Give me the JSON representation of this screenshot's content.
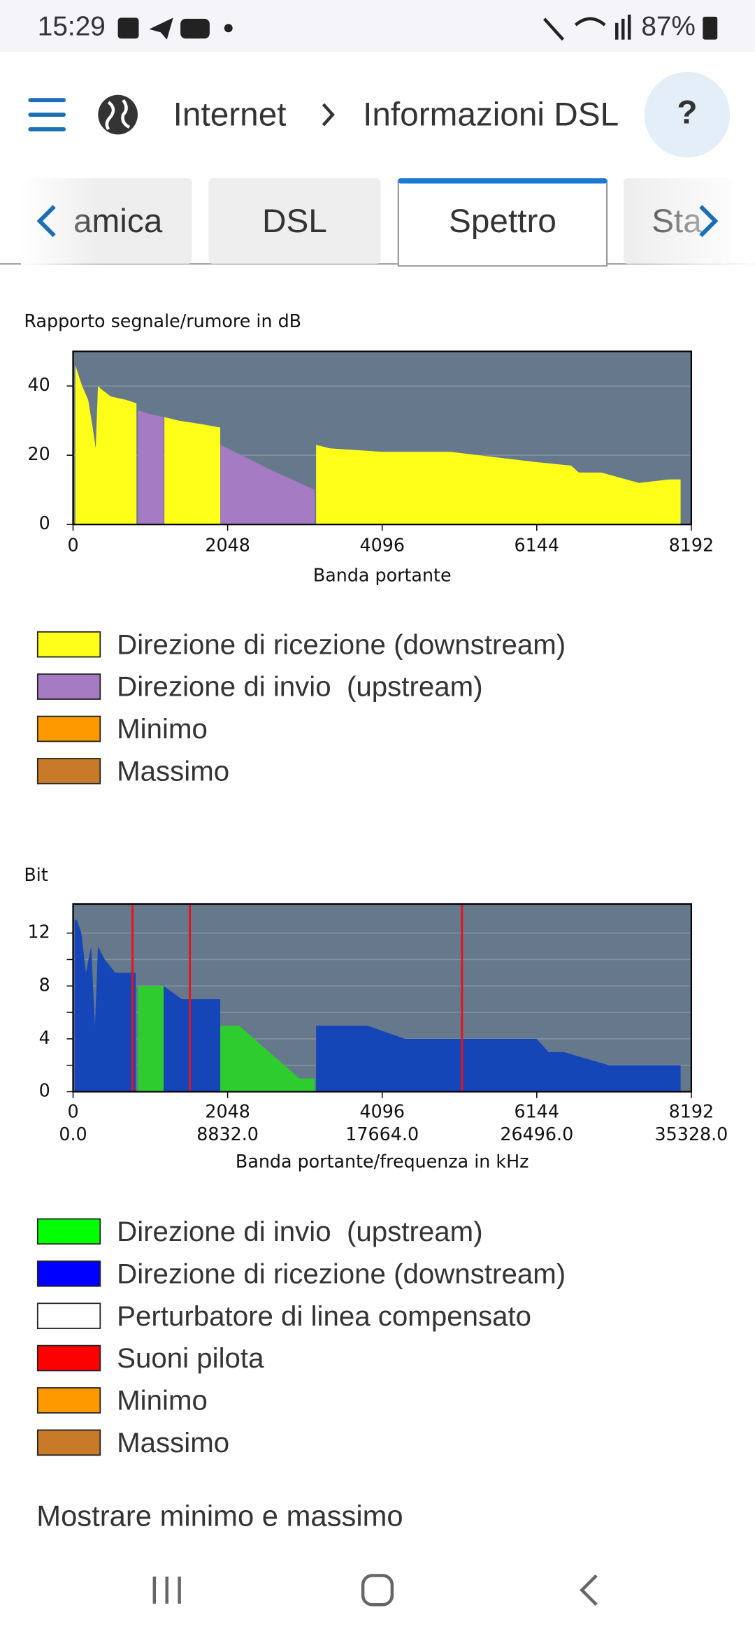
{
  "status_bar": {
    "time": "15:29",
    "battery": "87%"
  },
  "header": {
    "breadcrumb": [
      "Internet",
      "Informazioni DSL"
    ],
    "help": "?"
  },
  "tabs": [
    {
      "label": "amica"
    },
    {
      "label": "DSL"
    },
    {
      "label": "Spettro",
      "active": true
    },
    {
      "label": "Sta"
    }
  ],
  "chart_data": [
    {
      "type": "area",
      "title": "Rapporto segnale/rumore in dB",
      "xlabel": "Banda portante",
      "xlim": [
        0,
        8192
      ],
      "xticks": [
        0,
        2048,
        4096,
        6144,
        8192
      ],
      "ylim": [
        0,
        50
      ],
      "yticks": [
        0,
        20,
        40
      ],
      "grid": true,
      "background": "#66798c",
      "series": [
        {
          "name": "Direzione di ricezione (downstream)",
          "color": "#ffff1a",
          "x": [
            30,
            60,
            120,
            200,
            260,
            300,
            330,
            380,
            500,
            700,
            840,
            1000,
            1210,
            1400,
            1700,
            1950,
            2500,
            3220,
            3400,
            4096,
            5000,
            6144,
            6600,
            6700,
            7000,
            7500,
            7900,
            8050
          ],
          "values": [
            46,
            44,
            40,
            36,
            28,
            22,
            40,
            39,
            37,
            36,
            35,
            null,
            31,
            30,
            29,
            28,
            null,
            23,
            22,
            21,
            21,
            18,
            17,
            15,
            15,
            12,
            13,
            13
          ]
        },
        {
          "name": "Direzione di invio  (upstream)",
          "color": "#a57bc3",
          "x": [
            860,
            1000,
            1200,
            1300,
            1950,
            2048,
            2600,
            3200
          ],
          "values": [
            33,
            32,
            31,
            null,
            23,
            22,
            16,
            10
          ]
        },
        {
          "name": "Minimo",
          "color": "#ff9900"
        },
        {
          "name": "Massimo",
          "color": "#c87a28"
        }
      ]
    },
    {
      "type": "area",
      "title": "Bit",
      "xlabel": "Banda portante/frequenza in kHz",
      "xlim": [
        0,
        8192
      ],
      "xticks": [
        0,
        2048,
        4096,
        6144,
        8192
      ],
      "x2lim": [
        0,
        35328
      ],
      "x2ticks": [
        {
          "value": 0,
          "label": "0.0"
        },
        {
          "value": 8832,
          "label": "8832.0"
        },
        {
          "value": 17664,
          "label": "17664.0"
        },
        {
          "value": 26496,
          "label": "26496.0"
        },
        {
          "value": 35328,
          "label": "35328.0"
        }
      ],
      "ylim": [
        0,
        14.2
      ],
      "yticks": [
        0,
        4,
        8,
        12
      ],
      "minor_yticks": [
        2,
        6,
        10
      ],
      "grid": true,
      "background": "#66798c",
      "series": [
        {
          "name": "Direzione di invio  (upstream)",
          "color": "#2ecc2e",
          "swatch": "#00ff00",
          "x": [
            860,
            1200,
            1250,
            1950,
            2200,
            2400,
            2600,
            2800,
            3000,
            3200
          ],
          "values": [
            8,
            8,
            null,
            5,
            5,
            4,
            3,
            2,
            1,
            1
          ]
        },
        {
          "name": "Direzione di ricezione (downstream)",
          "color": "#1446b8",
          "swatch": "#0000ff",
          "x": [
            20,
            50,
            110,
            170,
            240,
            290,
            330,
            420,
            560,
            830,
            900,
            1200,
            1440,
            1950,
            2500,
            3220,
            3900,
            4400,
            5500,
            6144,
            6300,
            6500,
            7100,
            7200,
            8050
          ],
          "values": [
            13,
            13,
            12,
            9,
            11,
            5,
            11,
            10,
            9,
            9,
            null,
            8,
            7,
            7,
            null,
            5,
            5,
            4,
            4,
            4,
            3,
            3,
            2,
            2,
            2
          ]
        },
        {
          "name": "Perturbatore di linea compensato",
          "color": "#ffffff"
        },
        {
          "name": "Suoni pilota",
          "type": "vline",
          "color": "#e8141a",
          "swatch": "#ff0000",
          "x": [
            788,
            1547,
            5153
          ]
        },
        {
          "name": "Minimo",
          "color": "#ff9900"
        },
        {
          "name": "Massimo",
          "color": "#c87a28"
        }
      ]
    }
  ],
  "link": "Mostrare minimo e massimo"
}
